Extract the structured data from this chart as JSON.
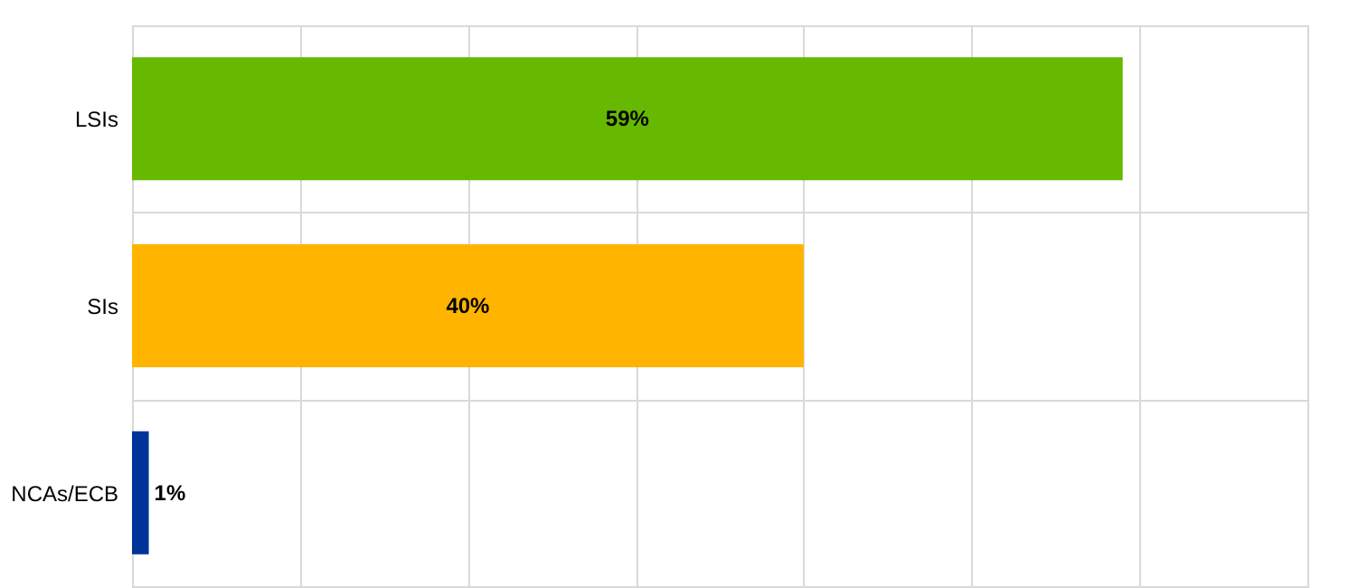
{
  "chart_data": {
    "type": "bar",
    "orientation": "horizontal",
    "categories": [
      "LSIs",
      "SIs",
      "NCAs/ECB"
    ],
    "values": [
      59,
      40,
      1
    ],
    "colors": [
      "#66b900",
      "#ffb400",
      "#003399"
    ],
    "value_labels": [
      "59%",
      "40%",
      "1%"
    ],
    "xlim": [
      0,
      70
    ],
    "xticks": [
      {
        "value": 0,
        "label": null
      },
      {
        "value": 10,
        "label": null
      },
      {
        "value": 20,
        "label": null
      },
      {
        "value": 30,
        "label": null
      },
      {
        "value": 40,
        "label": null
      },
      {
        "value": 50,
        "label": null
      },
      {
        "value": 60,
        "label": null
      },
      {
        "value": 70,
        "label": null
      }
    ],
    "tick_labels": "y",
    "grid": true
  }
}
